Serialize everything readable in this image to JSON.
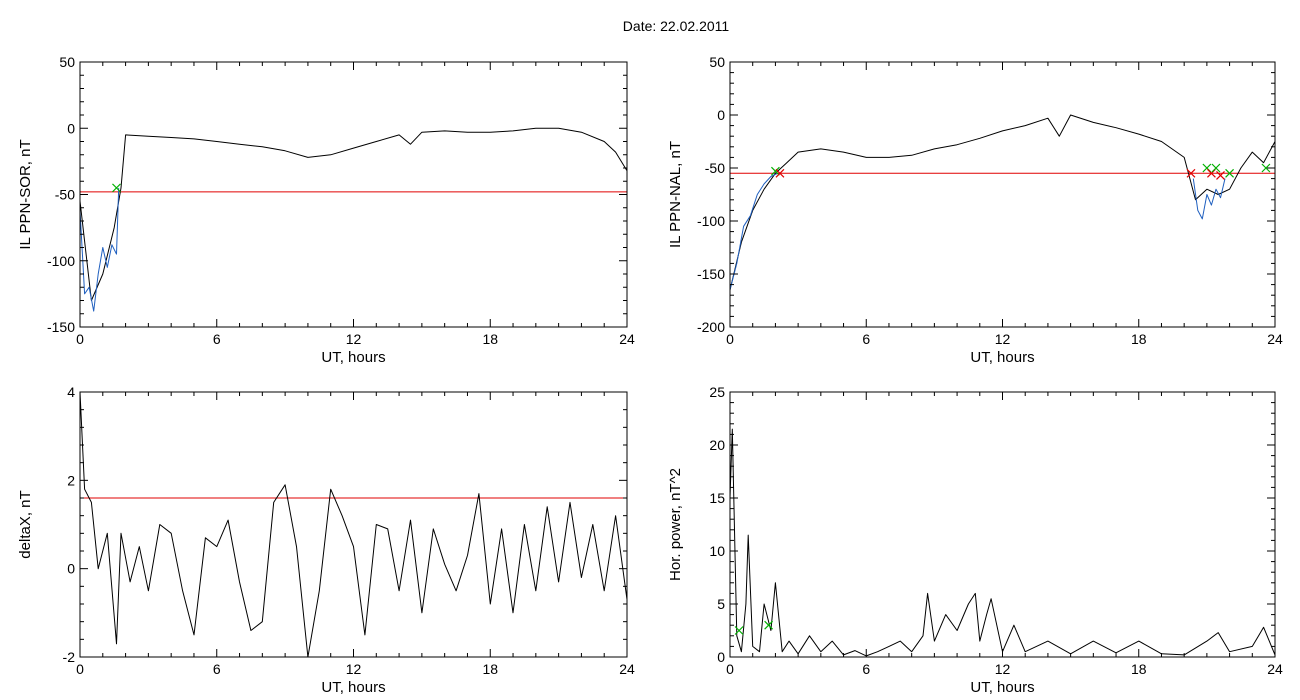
{
  "title": "Date:  22.02.2011",
  "chart_data": [
    {
      "type": "line",
      "xlabel": "UT, hours",
      "ylabel": "IL PPN-SOR, nT",
      "xlim": [
        0,
        24
      ],
      "ylim": [
        -150,
        50
      ],
      "xticks": [
        0,
        6,
        12,
        18,
        24
      ],
      "yticks": [
        50,
        0,
        -50,
        -100,
        -150
      ],
      "threshold": -48,
      "threshold_color": "#e00000",
      "series": [
        {
          "color": "#000000",
          "x": [
            0,
            0.5,
            1,
            1.5,
            1.8,
            2,
            3,
            4,
            5,
            6,
            7,
            8,
            9,
            10,
            11,
            12,
            13,
            14,
            14.5,
            15,
            16,
            17,
            18,
            19,
            20,
            21,
            22,
            23,
            23.5,
            24
          ],
          "y": [
            -55,
            -130,
            -110,
            -75,
            -45,
            -5,
            -6,
            -7,
            -8,
            -10,
            -12,
            -14,
            -17,
            -22,
            -20,
            -15,
            -10,
            -5,
            -12,
            -3,
            -2,
            -3,
            -3,
            -2,
            0,
            0,
            -3,
            -10,
            -18,
            -32
          ]
        },
        {
          "color": "#1f5fbf",
          "x": [
            0,
            0.2,
            0.4,
            0.6,
            0.8,
            1,
            1.2,
            1.4,
            1.6,
            1.7
          ],
          "y": [
            -62,
            -125,
            -120,
            -138,
            -110,
            -90,
            -105,
            -88,
            -95,
            -45
          ]
        }
      ],
      "markers": [
        {
          "x": 1.6,
          "y": -45,
          "color": "#00b000"
        }
      ]
    },
    {
      "type": "line",
      "xlabel": "UT, hours",
      "ylabel": "IL PPN-NAL, nT",
      "xlim": [
        0,
        24
      ],
      "ylim": [
        -200,
        50
      ],
      "xticks": [
        0,
        6,
        12,
        18,
        24
      ],
      "yticks": [
        50,
        0,
        -50,
        -100,
        -150,
        -200
      ],
      "threshold": -55,
      "threshold_color": "#e00000",
      "series": [
        {
          "color": "#000000",
          "x": [
            0,
            0.5,
            1,
            1.5,
            2,
            2.5,
            3,
            4,
            5,
            6,
            7,
            8,
            9,
            10,
            11,
            12,
            13,
            14,
            14.5,
            15,
            16,
            17,
            18,
            19,
            20,
            20.5,
            21,
            21.5,
            22,
            22.5,
            23,
            23.5,
            24
          ],
          "y": [
            -165,
            -120,
            -90,
            -70,
            -55,
            -45,
            -35,
            -32,
            -35,
            -40,
            -40,
            -38,
            -32,
            -28,
            -22,
            -15,
            -10,
            -3,
            -20,
            0,
            -7,
            -12,
            -18,
            -25,
            -40,
            -80,
            -70,
            -75,
            -70,
            -50,
            -35,
            -45,
            -25
          ]
        },
        {
          "color": "#1f5fbf",
          "x": [
            0,
            0.3,
            0.6,
            0.9,
            1.2,
            1.5,
            1.8,
            2.1
          ],
          "y": [
            -165,
            -140,
            -105,
            -95,
            -75,
            -65,
            -58,
            -55
          ]
        },
        {
          "color": "#1f5fbf",
          "x": [
            20.4,
            20.6,
            20.8,
            21,
            21.2,
            21.4,
            21.6,
            21.8
          ],
          "y": [
            -60,
            -90,
            -98,
            -75,
            -85,
            -70,
            -78,
            -60
          ]
        }
      ],
      "markers": [
        {
          "x": 2.0,
          "y": -53,
          "color": "#00b000"
        },
        {
          "x": 2.2,
          "y": -55,
          "color": "#e00000"
        },
        {
          "x": 20.3,
          "y": -55,
          "color": "#e00000"
        },
        {
          "x": 21.0,
          "y": -50,
          "color": "#00b000"
        },
        {
          "x": 21.2,
          "y": -55,
          "color": "#e00000"
        },
        {
          "x": 21.4,
          "y": -50,
          "color": "#00b000"
        },
        {
          "x": 21.6,
          "y": -57,
          "color": "#e00000"
        },
        {
          "x": 22.0,
          "y": -55,
          "color": "#00b000"
        },
        {
          "x": 23.6,
          "y": -50,
          "color": "#00b000"
        }
      ]
    },
    {
      "type": "line",
      "xlabel": "UT, hours",
      "ylabel": "deltaX, nT",
      "xlim": [
        0,
        24
      ],
      "ylim": [
        -2,
        4
      ],
      "xticks": [
        0,
        6,
        12,
        18,
        24
      ],
      "yticks": [
        4,
        2,
        0,
        -2
      ],
      "threshold": 1.6,
      "threshold_color": "#e00000",
      "series": [
        {
          "color": "#000000",
          "x": [
            0,
            0.2,
            0.5,
            0.8,
            1.2,
            1.6,
            1.8,
            2.2,
            2.6,
            3,
            3.5,
            4,
            4.5,
            5,
            5.5,
            6,
            6.5,
            7,
            7.5,
            8,
            8.5,
            9,
            9.5,
            10,
            10.5,
            11,
            11.5,
            12,
            12.5,
            13,
            13.5,
            14,
            14.5,
            15,
            15.5,
            16,
            16.5,
            17,
            17.5,
            18,
            18.5,
            19,
            19.5,
            20,
            20.5,
            21,
            21.5,
            22,
            22.5,
            23,
            23.5,
            24
          ],
          "y": [
            4,
            1.8,
            1.5,
            0,
            0.8,
            -1.7,
            0.8,
            -0.3,
            0.5,
            -0.5,
            1,
            0.8,
            -0.5,
            -1.5,
            0.7,
            0.5,
            1.1,
            -0.3,
            -1.4,
            -1.2,
            1.5,
            1.9,
            0.5,
            -2,
            -0.5,
            1.8,
            1.2,
            0.5,
            -1.5,
            1,
            0.9,
            -0.5,
            1.1,
            -1,
            0.9,
            0.1,
            -0.5,
            0.3,
            1.7,
            -0.8,
            0.9,
            -1,
            1,
            -0.5,
            1.4,
            -0.3,
            1.5,
            -0.2,
            1,
            -0.5,
            1.2,
            -0.7
          ]
        }
      ],
      "markers": []
    },
    {
      "type": "line",
      "xlabel": "UT, hours",
      "ylabel": "Hor. power, nT^2",
      "xlim": [
        0,
        24
      ],
      "ylim": [
        0,
        25
      ],
      "xticks": [
        0,
        6,
        12,
        18,
        24
      ],
      "yticks": [
        25,
        20,
        15,
        10,
        5,
        0
      ],
      "threshold": 25,
      "threshold_color": "#e00000",
      "series": [
        {
          "color": "#000000",
          "x": [
            0,
            0.1,
            0.3,
            0.5,
            0.7,
            0.8,
            1.0,
            1.3,
            1.5,
            1.8,
            2.0,
            2.3,
            2.6,
            3,
            3.5,
            4,
            4.5,
            5,
            5.5,
            6,
            6.5,
            7,
            7.5,
            8,
            8.5,
            8.7,
            9,
            9.5,
            10,
            10.5,
            10.8,
            11,
            11.3,
            11.5,
            12,
            12.5,
            13,
            14,
            15,
            16,
            17,
            18,
            19,
            20,
            21,
            21.5,
            22,
            23,
            23.5,
            24
          ],
          "y": [
            15,
            21.5,
            2,
            0.5,
            5,
            11.5,
            1,
            0.5,
            5,
            2.5,
            7,
            0.5,
            1.5,
            0.3,
            2,
            0.5,
            1.5,
            0.2,
            0.6,
            0.1,
            0.5,
            1,
            1.5,
            0.5,
            2,
            6,
            1.5,
            4,
            2.5,
            5,
            6,
            1.5,
            4,
            5.5,
            0.5,
            3,
            0.5,
            1.5,
            0.3,
            1.5,
            0.4,
            1.5,
            0.3,
            0.2,
            1.5,
            2.3,
            0.5,
            1,
            2.8,
            0.2
          ]
        }
      ],
      "markers": [
        {
          "x": 0.4,
          "y": 2.5,
          "color": "#00b000"
        },
        {
          "x": 1.7,
          "y": 3,
          "color": "#00b000"
        }
      ]
    }
  ]
}
